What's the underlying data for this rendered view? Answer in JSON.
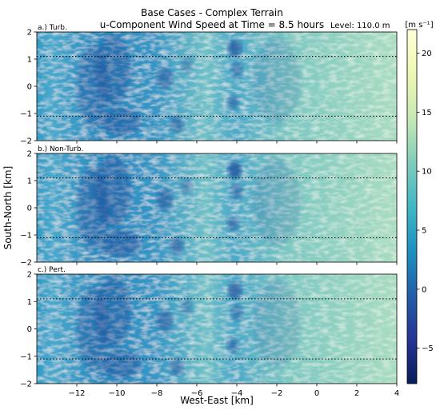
{
  "chart_data": {
    "type": "heatmap",
    "title_line1": "Base Cases - Complex Terrain",
    "title_line2": "u-Component Wind Speed at Time = 8.5 hours",
    "level_label": "Level: 110.0 m",
    "colorbar_unit_label": "[m s⁻¹]",
    "xlabel": "West-East [km]",
    "ylabel": "South-North [km]",
    "xlim": [
      -14,
      4
    ],
    "ylim": [
      -2,
      2
    ],
    "x_ticks": [
      -12,
      -10,
      -8,
      -6,
      -4,
      -2,
      0,
      2,
      4
    ],
    "y_ticks": [
      -2,
      -1,
      0,
      1,
      2
    ],
    "colorbar_range": [
      -8,
      22
    ],
    "colorbar_ticks": [
      -5,
      0,
      5,
      10,
      15,
      20
    ],
    "colormap": "YlGnBu_r",
    "colormap_stops": [
      "#081d58",
      "#253494",
      "#225ea8",
      "#1d91c0",
      "#41b6c4",
      "#7fcdbb",
      "#c7e9b4",
      "#edf8b1",
      "#ffffd9"
    ],
    "dotted_reference_lines_y": [
      1.1,
      -1.1
    ],
    "panels": [
      {
        "label": "a.) Turb."
      },
      {
        "label": "b.) Non-Turb."
      },
      {
        "label": "c.) Pert."
      }
    ]
  }
}
